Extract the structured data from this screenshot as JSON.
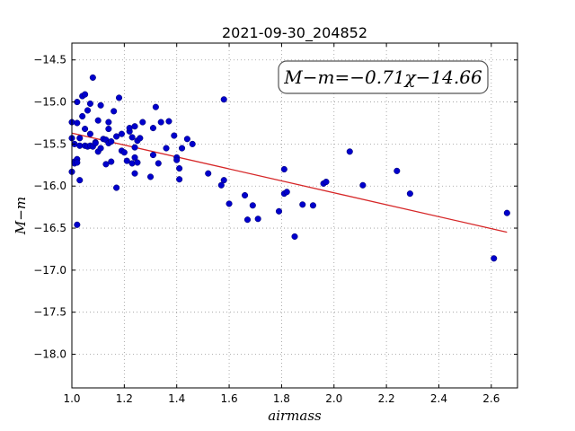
{
  "chart_data": {
    "type": "scatter",
    "title": "2021-09-30_204852",
    "xlabel": "airmass",
    "ylabel": "M−m",
    "xlim": [
      1.0,
      2.7
    ],
    "ylim": [
      -18.4,
      -14.3
    ],
    "y_inverted": true,
    "grid": true,
    "x_ticks": [
      1.0,
      1.2,
      1.4,
      1.6,
      1.8,
      2.0,
      2.2,
      2.4,
      2.6
    ],
    "x_tick_labels": [
      "1.0",
      "1.2",
      "1.4",
      "1.6",
      "1.8",
      "2.0",
      "2.2",
      "2.4",
      "2.6"
    ],
    "y_ticks": [
      -14.5,
      -15.0,
      -15.5,
      -16.0,
      -16.5,
      -17.0,
      -17.5,
      -18.0
    ],
    "y_tick_labels": [
      "−14.5",
      "−15.0",
      "−15.5",
      "−16.0",
      "−16.5",
      "−17.0",
      "−17.5",
      "−18.0"
    ],
    "annotation": "M−m=−0.71χ−14.66",
    "fit": {
      "slope": -0.71,
      "intercept": -14.66,
      "x_range": [
        1.0,
        2.66
      ],
      "color": "#d62728"
    },
    "point_color": "#0000cc",
    "x": [
      1.0,
      1.0,
      1.0,
      1.01,
      1.01,
      1.01,
      1.02,
      1.02,
      1.02,
      1.02,
      1.02,
      1.03,
      1.03,
      1.03,
      1.04,
      1.04,
      1.05,
      1.05,
      1.05,
      1.06,
      1.06,
      1.07,
      1.07,
      1.07,
      1.08,
      1.08,
      1.09,
      1.09,
      1.1,
      1.1,
      1.11,
      1.11,
      1.12,
      1.13,
      1.13,
      1.14,
      1.14,
      1.14,
      1.15,
      1.15,
      1.16,
      1.17,
      1.17,
      1.18,
      1.19,
      1.19,
      1.2,
      1.21,
      1.22,
      1.22,
      1.23,
      1.23,
      1.24,
      1.24,
      1.24,
      1.24,
      1.25,
      1.25,
      1.26,
      1.27,
      1.3,
      1.31,
      1.31,
      1.32,
      1.33,
      1.34,
      1.36,
      1.37,
      1.39,
      1.4,
      1.4,
      1.41,
      1.41,
      1.42,
      1.44,
      1.46,
      1.52,
      1.57,
      1.58,
      1.58,
      1.6,
      1.66,
      1.67,
      1.69,
      1.71,
      1.79,
      1.81,
      1.81,
      1.82,
      1.85,
      1.88,
      1.92,
      1.96,
      1.97,
      2.06,
      2.11,
      2.24,
      2.29,
      2.61,
      2.66
    ],
    "y": [
      -15.24,
      -15.43,
      -15.83,
      -15.5,
      -15.71,
      -15.73,
      -15.25,
      -15.68,
      -16.46,
      -15.0,
      -15.72,
      -15.52,
      -15.93,
      -15.43,
      -14.93,
      -15.17,
      -14.91,
      -15.32,
      -15.52,
      -15.1,
      -15.53,
      -15.52,
      -15.38,
      -15.02,
      -14.71,
      -15.53,
      -15.48,
      -15.49,
      -15.59,
      -15.22,
      -15.55,
      -15.04,
      -15.44,
      -15.74,
      -15.45,
      -15.32,
      -15.24,
      -15.49,
      -15.71,
      -15.47,
      -15.11,
      -15.41,
      -16.02,
      -14.95,
      -15.58,
      -15.38,
      -15.6,
      -15.7,
      -15.35,
      -15.31,
      -15.42,
      -15.73,
      -15.54,
      -15.85,
      -15.29,
      -15.66,
      -15.46,
      -15.72,
      -15.43,
      -15.24,
      -15.89,
      -15.63,
      -15.31,
      -15.06,
      -15.73,
      -15.24,
      -15.55,
      -15.23,
      -15.4,
      -15.66,
      -15.69,
      -15.92,
      -15.79,
      -15.55,
      -15.44,
      -15.5,
      -15.85,
      -15.99,
      -14.97,
      -15.93,
      -16.21,
      -16.11,
      -16.4,
      -16.23,
      -16.39,
      -16.3,
      -15.8,
      -16.09,
      -16.07,
      -16.6,
      -16.22,
      -16.23,
      -15.97,
      -15.95,
      -15.59,
      -15.99,
      -15.82,
      -16.09,
      -16.86,
      -16.32
    ]
  }
}
